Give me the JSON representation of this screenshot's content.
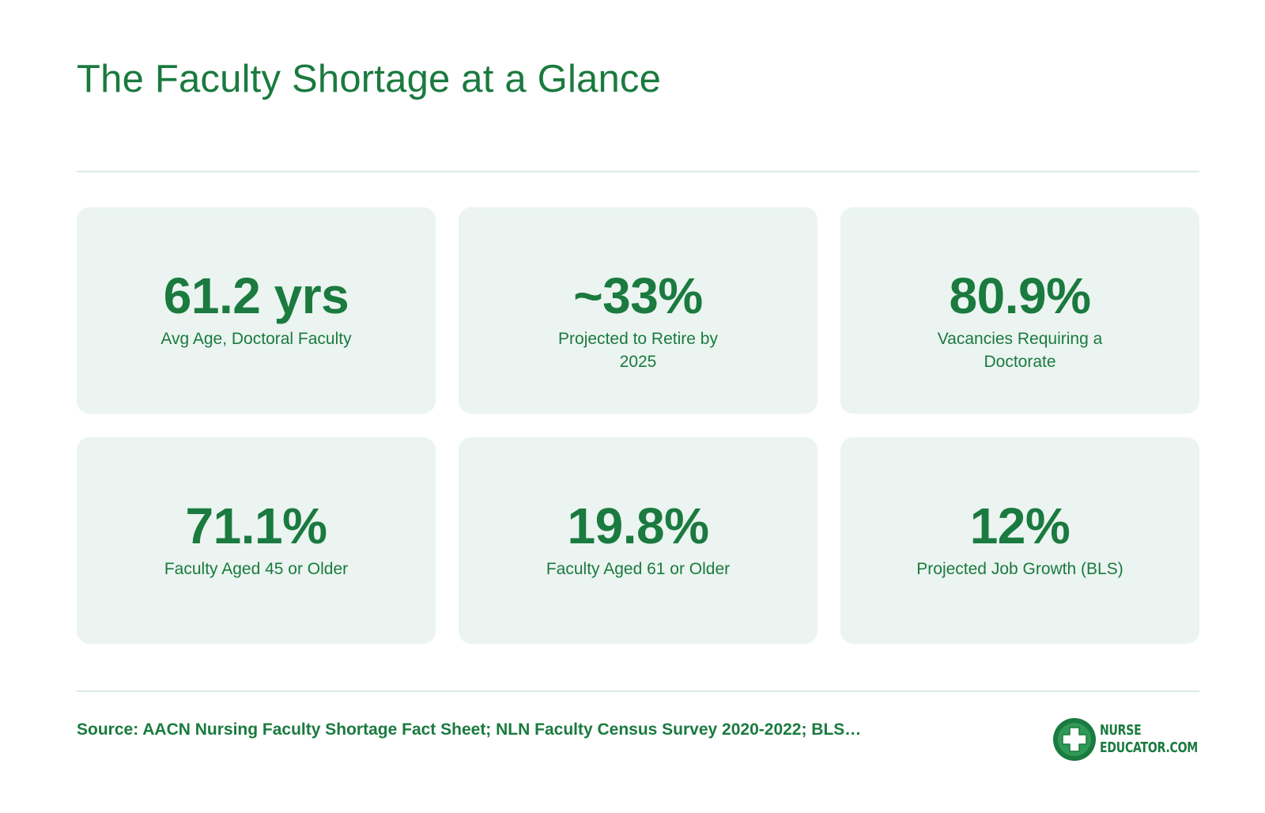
{
  "title": "The Faculty Shortage at a Glance",
  "stats": [
    {
      "value": "61.2 yrs",
      "label": "Avg Age, Doctoral Faculty"
    },
    {
      "value": "~33%",
      "label": "Projected to Retire by 2025"
    },
    {
      "value": "80.9%",
      "label": "Vacancies Requiring a Doctorate"
    },
    {
      "value": "71.1%",
      "label": "Faculty Aged 45 or Older"
    },
    {
      "value": "19.8%",
      "label": "Faculty Aged 61 or Older"
    },
    {
      "value": "12%",
      "label": "Projected Job Growth (BLS)"
    }
  ],
  "source": "Source: AACN Nursing Faculty Shortage Fact Sheet; NLN Faculty Census Survey 2020-2022; BLS…",
  "logo": {
    "line1": "NURSE",
    "line2": "EDUCATOR.COM",
    "icon": "medical-cross-icon"
  },
  "colors": {
    "accent": "#1a7a3f",
    "card_bg": "#ebf4f0",
    "divider": "#dde9e4",
    "background": "#ffffff"
  }
}
